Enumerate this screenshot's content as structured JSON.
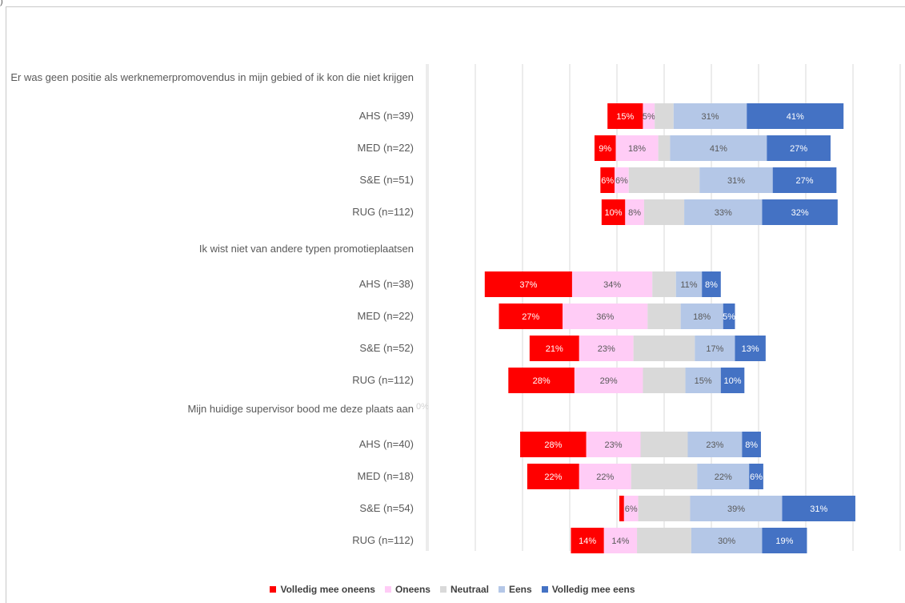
{
  "chart_data": {
    "type": "bar",
    "stacked": true,
    "orientation": "horizontal",
    "groups": [
      {
        "title": "Er was geen positie als werknemerpromovendus in mijn gebied of ik kon die niet krijgen",
        "categories": [
          "AHS (n=39)",
          "MED (n=22)",
          "S&E (n=51)",
          "RUG (n=112)"
        ],
        "values": [
          [
            15,
            5,
            8,
            31,
            41
          ],
          [
            9,
            18,
            5,
            41,
            27
          ],
          [
            6,
            6,
            30,
            31,
            27
          ],
          [
            10,
            8,
            17,
            33,
            32
          ]
        ],
        "labels": [
          [
            "15%",
            "5%",
            "",
            "31%",
            "41%"
          ],
          [
            "9%",
            "18%",
            "",
            "41%",
            "27%"
          ],
          [
            "6%",
            "6%",
            "",
            "31%",
            "27%"
          ],
          [
            "10%",
            "8%",
            "",
            "33%",
            "32%"
          ]
        ]
      },
      {
        "title": "Ik wist niet van andere typen promotieplaatsen",
        "categories": [
          "AHS (n=38)",
          "MED (n=22)",
          "S&E (n=52)",
          "RUG (n=112)"
        ],
        "values": [
          [
            37,
            34,
            10,
            11,
            8
          ],
          [
            27,
            36,
            14,
            18,
            5
          ],
          [
            21,
            23,
            26,
            17,
            13
          ],
          [
            28,
            29,
            18,
            15,
            10
          ]
        ],
        "labels": [
          [
            "37%",
            "34%",
            "",
            "11%",
            "8%"
          ],
          [
            "27%",
            "36%",
            "",
            "18%",
            "5%"
          ],
          [
            "21%",
            "23%",
            "",
            "17%",
            "13%"
          ],
          [
            "28%",
            "29%",
            "",
            "15%",
            "10%"
          ]
        ]
      },
      {
        "title": "Mijn huidige supervisor bood me deze plaats aan",
        "title_suffix": "0%",
        "categories": [
          "AHS (n=40)",
          "MED (n=18)",
          "S&E (n=54)",
          "RUG (n=112)"
        ],
        "values": [
          [
            28,
            23,
            20,
            23,
            8
          ],
          [
            22,
            22,
            28,
            22,
            6
          ],
          [
            2,
            6,
            22,
            39,
            31
          ],
          [
            14,
            14,
            23,
            30,
            19
          ]
        ],
        "labels": [
          [
            "28%",
            "23%",
            "",
            "23%",
            "8%"
          ],
          [
            "22%",
            "22%",
            "",
            "22%",
            "6%"
          ],
          [
            "",
            "6%",
            "",
            "39%",
            "31%"
          ],
          [
            "14%",
            "14%",
            "",
            "30%",
            "19%"
          ]
        ]
      }
    ],
    "series": [
      {
        "name": "Volledig mee oneens",
        "color": "#ff0000",
        "label_color": "#ffffff"
      },
      {
        "name": "Oneens",
        "color": "#ffccf6",
        "label_color": "#595959"
      },
      {
        "name": "Neutraal",
        "color": "#d9d9d9",
        "label_color": "#595959"
      },
      {
        "name": "Eens",
        "color": "#b4c7e7",
        "label_color": "#595959"
      },
      {
        "name": "Volledig mee eens",
        "color": "#4472c4",
        "label_color": "#ffffff"
      }
    ],
    "xlim": [
      -100,
      100
    ],
    "grid": true,
    "legend_position": "bottom",
    "corner_label": ")"
  }
}
